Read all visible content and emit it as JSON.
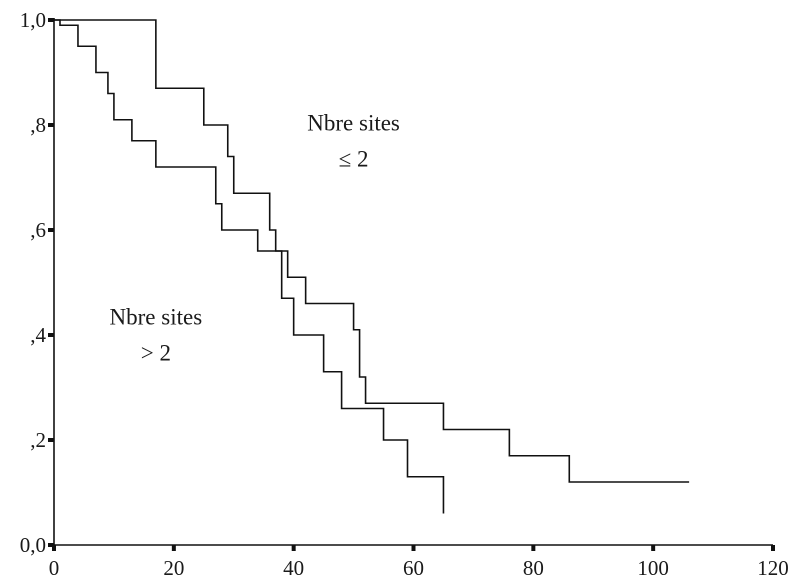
{
  "chart_data": {
    "type": "line",
    "step": true,
    "title": "",
    "xlabel": "",
    "ylabel": "",
    "xlim": [
      0,
      120
    ],
    "ylim": [
      0,
      1
    ],
    "x_ticks": [
      {
        "value": 0,
        "label": "0"
      },
      {
        "value": 20,
        "label": "20"
      },
      {
        "value": 40,
        "label": "40"
      },
      {
        "value": 60,
        "label": "60"
      },
      {
        "value": 80,
        "label": "80"
      },
      {
        "value": 100,
        "label": "100"
      },
      {
        "value": 120,
        "label": "120"
      }
    ],
    "y_ticks": [
      {
        "value": 0,
        "label": "0,0"
      },
      {
        "value": 0.2,
        "label": ",2"
      },
      {
        "value": 0.4,
        "label": ",4"
      },
      {
        "value": 0.6,
        "label": ",6"
      },
      {
        "value": 0.8,
        "label": ",8"
      },
      {
        "value": 1.0,
        "label": "1,0"
      }
    ],
    "grid": false,
    "series": [
      {
        "x": [
          0,
          17,
          25,
          29,
          30,
          36,
          37,
          39,
          42,
          50,
          51,
          52,
          65,
          76,
          86,
          106
        ],
        "y": [
          1.0,
          0.87,
          0.8,
          0.74,
          0.67,
          0.6,
          0.56,
          0.51,
          0.46,
          0.41,
          0.32,
          0.27,
          0.22,
          0.17,
          0.12,
          0.12
        ]
      },
      {
        "x": [
          0,
          1,
          4,
          7,
          9,
          10,
          13,
          17,
          27,
          28,
          34,
          38,
          40,
          45,
          48,
          55,
          59,
          65
        ],
        "y": [
          1.0,
          0.99,
          0.95,
          0.9,
          0.86,
          0.81,
          0.77,
          0.72,
          0.65,
          0.6,
          0.56,
          0.47,
          0.4,
          0.33,
          0.26,
          0.2,
          0.13,
          0.06
        ]
      }
    ],
    "annotations": [
      {
        "lines": [
          "Nbre sites",
          "≤ 2"
        ],
        "at": [
          50,
          0.79
        ]
      },
      {
        "lines": [
          "Nbre sites",
          "> 2"
        ],
        "at": [
          17,
          0.42
        ]
      }
    ]
  }
}
